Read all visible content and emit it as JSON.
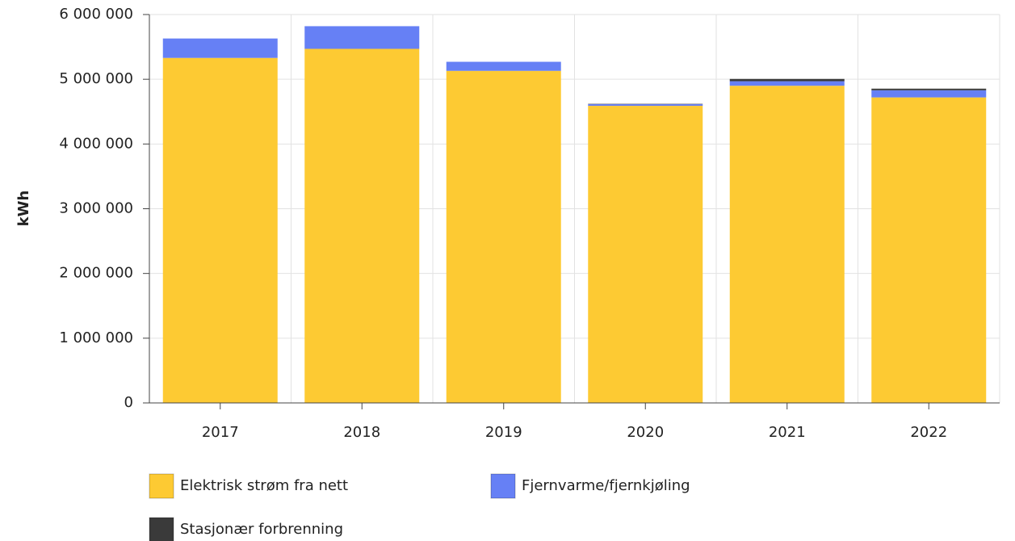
{
  "chart_data": {
    "type": "stacked_bar",
    "y_label": "kWh",
    "categories": [
      "2017",
      "2018",
      "2019",
      "2020",
      "2021",
      "2022"
    ],
    "series": [
      {
        "name": "Elektrisk strøm fra nett",
        "color": "#fdca33",
        "values": [
          5330000,
          5470000,
          5130000,
          4590000,
          4900000,
          4720000
        ]
      },
      {
        "name": "Fjernvarme/fjernkjøling",
        "color": "#6680f5",
        "values": [
          300000,
          350000,
          140000,
          25000,
          70000,
          110000
        ]
      },
      {
        "name": "Stasjonær forbrenning",
        "color": "#3a3a3a",
        "values": [
          0,
          0,
          0,
          5000,
          35000,
          25000
        ]
      }
    ],
    "ylim": [
      0,
      6000000
    ],
    "yticks": [
      0,
      {
        "value": 1000000,
        "label": "1 000 000"
      },
      {
        "value": 2000000,
        "label": "2 000 000"
      },
      {
        "value": 3000000,
        "label": "3 000 000"
      },
      {
        "value": 4000000,
        "label": "4 000 000"
      },
      {
        "value": 5000000,
        "label": "5 000 000"
      },
      {
        "value": 6000000,
        "label": "6 000 000"
      }
    ],
    "grid": true
  }
}
